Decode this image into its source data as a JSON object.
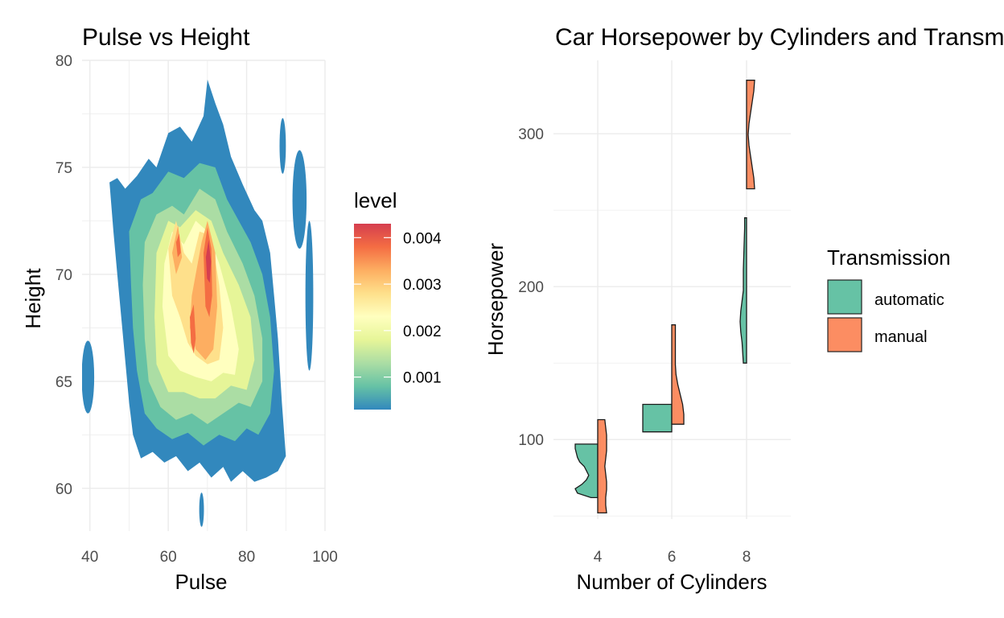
{
  "chart_data": [
    {
      "type": "heatmap",
      "subtype": "filled-density-contour",
      "title": "Pulse vs Height",
      "xlabel": "Pulse",
      "ylabel": "Height",
      "xlim": [
        38,
        100
      ],
      "ylim": [
        58,
        80
      ],
      "x_ticks": [
        40,
        60,
        80,
        100
      ],
      "y_ticks": [
        60,
        65,
        70,
        75,
        80
      ],
      "grid": true,
      "legend": {
        "title": "level",
        "position": "right",
        "scale": "Spectral",
        "range": [
          0.0003,
          0.0043
        ],
        "breaks": [
          0.001,
          0.002,
          0.003,
          0.004
        ],
        "break_labels": [
          "0.001",
          "0.002",
          "0.003",
          "0.004"
        ]
      },
      "colors": [
        "#3288BD",
        "#66C2A5",
        "#ABDDA4",
        "#E6F598",
        "#FFFFBF",
        "#FEE08B",
        "#FDAE61",
        "#F46D43",
        "#D53E4F"
      ],
      "density_peaks": [
        {
          "x": 70,
          "y": 71,
          "level": 0.0042
        },
        {
          "x": 62,
          "y": 72,
          "level": 0.0032
        },
        {
          "x": 66,
          "y": 67,
          "level": 0.0034
        },
        {
          "x": 71,
          "y": 66,
          "level": 0.003
        },
        {
          "x": 60,
          "y": 70,
          "level": 0.0024
        }
      ]
    },
    {
      "type": "violin",
      "subtype": "split-half-violin",
      "title": "Car Horsepower by Cylinders and Transmission",
      "xlabel": "Number of Cylinders",
      "ylabel": "Horsepower",
      "categories": [
        "4",
        "6",
        "8"
      ],
      "ylim": [
        48,
        348
      ],
      "y_ticks": [
        100,
        200,
        300
      ],
      "grid": true,
      "legend": {
        "title": "Transmission",
        "position": "right"
      },
      "series": [
        {
          "name": "automatic",
          "color": "#66C2A5",
          "side": "left",
          "groups": [
            {
              "category": "4",
              "min": 62,
              "max": 97
            },
            {
              "category": "6",
              "min": 105,
              "max": 123
            },
            {
              "category": "8",
              "min": 150,
              "max": 245
            }
          ]
        },
        {
          "name": "manual",
          "color": "#FC8D62",
          "side": "right",
          "groups": [
            {
              "category": "4",
              "min": 52,
              "max": 113
            },
            {
              "category": "6",
              "min": 110,
              "max": 175
            },
            {
              "category": "8",
              "min": 264,
              "max": 335
            }
          ]
        }
      ]
    }
  ]
}
